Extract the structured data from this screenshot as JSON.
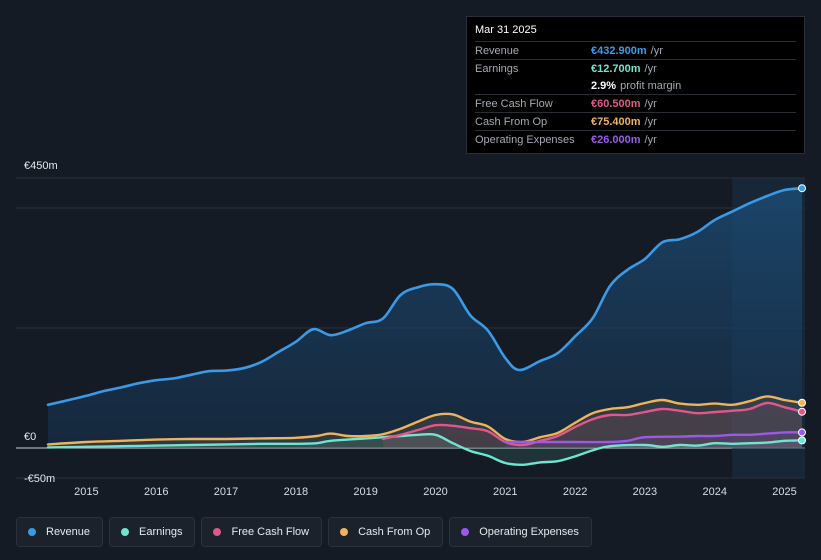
{
  "tooltip": {
    "date": "Mar 31 2025",
    "rows": [
      {
        "label": "Revenue",
        "value": "€432.900m",
        "unit": "/yr",
        "color": "#3b9ae6"
      },
      {
        "label": "Earnings",
        "value": "€12.700m",
        "unit": "/yr",
        "color": "#6ee6cf"
      },
      {
        "label": "",
        "value": "2.9%",
        "unit": "profit margin",
        "color": "#ffffff"
      },
      {
        "label": "Free Cash Flow",
        "value": "€60.500m",
        "unit": "/yr",
        "color": "#e0588a"
      },
      {
        "label": "Cash From Op",
        "value": "€75.400m",
        "unit": "/yr",
        "color": "#f0b25a"
      },
      {
        "label": "Operating Expenses",
        "value": "€26.000m",
        "unit": "/yr",
        "color": "#9b59e8"
      }
    ]
  },
  "legend": [
    {
      "label": "Revenue",
      "color": "#3b9ae6"
    },
    {
      "label": "Earnings",
      "color": "#6ee6cf"
    },
    {
      "label": "Free Cash Flow",
      "color": "#e0588a"
    },
    {
      "label": "Cash From Op",
      "color": "#f0b25a"
    },
    {
      "label": "Operating Expenses",
      "color": "#9b59e8"
    }
  ],
  "chart_data": {
    "type": "area",
    "title": "",
    "xlabel": "",
    "ylabel": "",
    "y_tick_labels": [
      "€450m",
      "€0",
      "-€50m"
    ],
    "ylim": [
      -50,
      450
    ],
    "xlim": [
      2014.45,
      2025.25
    ],
    "x_ticks": [
      2015,
      2016,
      2017,
      2018,
      2019,
      2020,
      2021,
      2022,
      2023,
      2024,
      2025
    ],
    "highlight_from": 2024.25,
    "series": [
      {
        "name": "Revenue",
        "color": "#3b9ae6",
        "points": [
          [
            2014.45,
            72
          ],
          [
            2014.75,
            80
          ],
          [
            2015.0,
            87
          ],
          [
            2015.25,
            95
          ],
          [
            2015.5,
            101
          ],
          [
            2015.75,
            108
          ],
          [
            2016.0,
            113
          ],
          [
            2016.25,
            116
          ],
          [
            2016.5,
            122
          ],
          [
            2016.75,
            128
          ],
          [
            2017.0,
            129
          ],
          [
            2017.25,
            133
          ],
          [
            2017.5,
            143
          ],
          [
            2017.75,
            160
          ],
          [
            2018.0,
            177
          ],
          [
            2018.25,
            198
          ],
          [
            2018.5,
            188
          ],
          [
            2018.75,
            196
          ],
          [
            2019.0,
            208
          ],
          [
            2019.25,
            216
          ],
          [
            2019.5,
            255
          ],
          [
            2019.75,
            268
          ],
          [
            2020.0,
            273
          ],
          [
            2020.25,
            265
          ],
          [
            2020.5,
            221
          ],
          [
            2020.75,
            196
          ],
          [
            2021.0,
            150
          ],
          [
            2021.2,
            130
          ],
          [
            2021.5,
            145
          ],
          [
            2021.75,
            158
          ],
          [
            2022.0,
            186
          ],
          [
            2022.25,
            216
          ],
          [
            2022.5,
            270
          ],
          [
            2022.75,
            297
          ],
          [
            2023.0,
            315
          ],
          [
            2023.25,
            343
          ],
          [
            2023.5,
            348
          ],
          [
            2023.75,
            360
          ],
          [
            2024.0,
            380
          ],
          [
            2024.25,
            394
          ],
          [
            2024.5,
            408
          ],
          [
            2024.75,
            420
          ],
          [
            2025.0,
            430
          ],
          [
            2025.25,
            433
          ]
        ]
      },
      {
        "name": "Earnings",
        "color": "#6ee6cf",
        "points": [
          [
            2014.45,
            1
          ],
          [
            2015.0,
            2
          ],
          [
            2015.5,
            3
          ],
          [
            2016.0,
            4
          ],
          [
            2016.5,
            5
          ],
          [
            2017.0,
            6
          ],
          [
            2017.5,
            7
          ],
          [
            2018.0,
            7
          ],
          [
            2018.3,
            8
          ],
          [
            2018.5,
            12
          ],
          [
            2019.0,
            16
          ],
          [
            2019.5,
            20
          ],
          [
            2019.75,
            22
          ],
          [
            2020.0,
            22
          ],
          [
            2020.25,
            8
          ],
          [
            2020.5,
            -5
          ],
          [
            2020.75,
            -13
          ],
          [
            2021.0,
            -25
          ],
          [
            2021.25,
            -28
          ],
          [
            2021.5,
            -24
          ],
          [
            2021.75,
            -22
          ],
          [
            2022.0,
            -14
          ],
          [
            2022.25,
            -4
          ],
          [
            2022.5,
            3
          ],
          [
            2023.0,
            5
          ],
          [
            2023.25,
            2
          ],
          [
            2023.5,
            5
          ],
          [
            2023.75,
            4
          ],
          [
            2024.0,
            8
          ],
          [
            2024.25,
            7
          ],
          [
            2024.5,
            8
          ],
          [
            2024.75,
            9
          ],
          [
            2025.0,
            12
          ],
          [
            2025.25,
            12.7
          ]
        ]
      },
      {
        "name": "Free Cash Flow",
        "color": "#e0588a",
        "points": [
          [
            2019.25,
            15
          ],
          [
            2019.5,
            22
          ],
          [
            2019.75,
            30
          ],
          [
            2020.0,
            38
          ],
          [
            2020.25,
            37
          ],
          [
            2020.5,
            33
          ],
          [
            2020.75,
            28
          ],
          [
            2021.0,
            10
          ],
          [
            2021.25,
            5
          ],
          [
            2021.5,
            12
          ],
          [
            2021.75,
            20
          ],
          [
            2022.0,
            35
          ],
          [
            2022.25,
            48
          ],
          [
            2022.5,
            55
          ],
          [
            2022.75,
            55
          ],
          [
            2023.0,
            60
          ],
          [
            2023.25,
            65
          ],
          [
            2023.5,
            62
          ],
          [
            2023.75,
            58
          ],
          [
            2024.0,
            60
          ],
          [
            2024.25,
            62
          ],
          [
            2024.5,
            65
          ],
          [
            2024.75,
            75
          ],
          [
            2025.0,
            68
          ],
          [
            2025.25,
            60.5
          ]
        ]
      },
      {
        "name": "Cash From Op",
        "color": "#f0b25a",
        "points": [
          [
            2014.45,
            6
          ],
          [
            2015.0,
            10
          ],
          [
            2015.5,
            12
          ],
          [
            2016.0,
            14
          ],
          [
            2016.5,
            15
          ],
          [
            2017.0,
            15
          ],
          [
            2017.5,
            16
          ],
          [
            2018.0,
            17
          ],
          [
            2018.3,
            20
          ],
          [
            2018.5,
            24
          ],
          [
            2018.75,
            20
          ],
          [
            2019.0,
            20
          ],
          [
            2019.25,
            23
          ],
          [
            2019.5,
            32
          ],
          [
            2019.75,
            44
          ],
          [
            2020.0,
            55
          ],
          [
            2020.25,
            56
          ],
          [
            2020.5,
            44
          ],
          [
            2020.75,
            36
          ],
          [
            2021.0,
            15
          ],
          [
            2021.25,
            10
          ],
          [
            2021.5,
            18
          ],
          [
            2021.75,
            25
          ],
          [
            2022.0,
            42
          ],
          [
            2022.25,
            58
          ],
          [
            2022.5,
            65
          ],
          [
            2022.75,
            68
          ],
          [
            2023.0,
            75
          ],
          [
            2023.25,
            80
          ],
          [
            2023.5,
            74
          ],
          [
            2023.75,
            72
          ],
          [
            2024.0,
            74
          ],
          [
            2024.25,
            72
          ],
          [
            2024.5,
            78
          ],
          [
            2024.75,
            86
          ],
          [
            2025.0,
            80
          ],
          [
            2025.25,
            75.4
          ]
        ]
      },
      {
        "name": "Operating Expenses",
        "color": "#9b59e8",
        "points": [
          [
            2021.0,
            10
          ],
          [
            2021.5,
            10
          ],
          [
            2022.0,
            10
          ],
          [
            2022.5,
            10
          ],
          [
            2022.75,
            12
          ],
          [
            2023.0,
            18
          ],
          [
            2023.5,
            19
          ],
          [
            2023.75,
            20
          ],
          [
            2024.0,
            20
          ],
          [
            2024.25,
            22
          ],
          [
            2024.5,
            22
          ],
          [
            2024.75,
            24
          ],
          [
            2025.0,
            26
          ],
          [
            2025.25,
            26
          ]
        ]
      }
    ]
  }
}
